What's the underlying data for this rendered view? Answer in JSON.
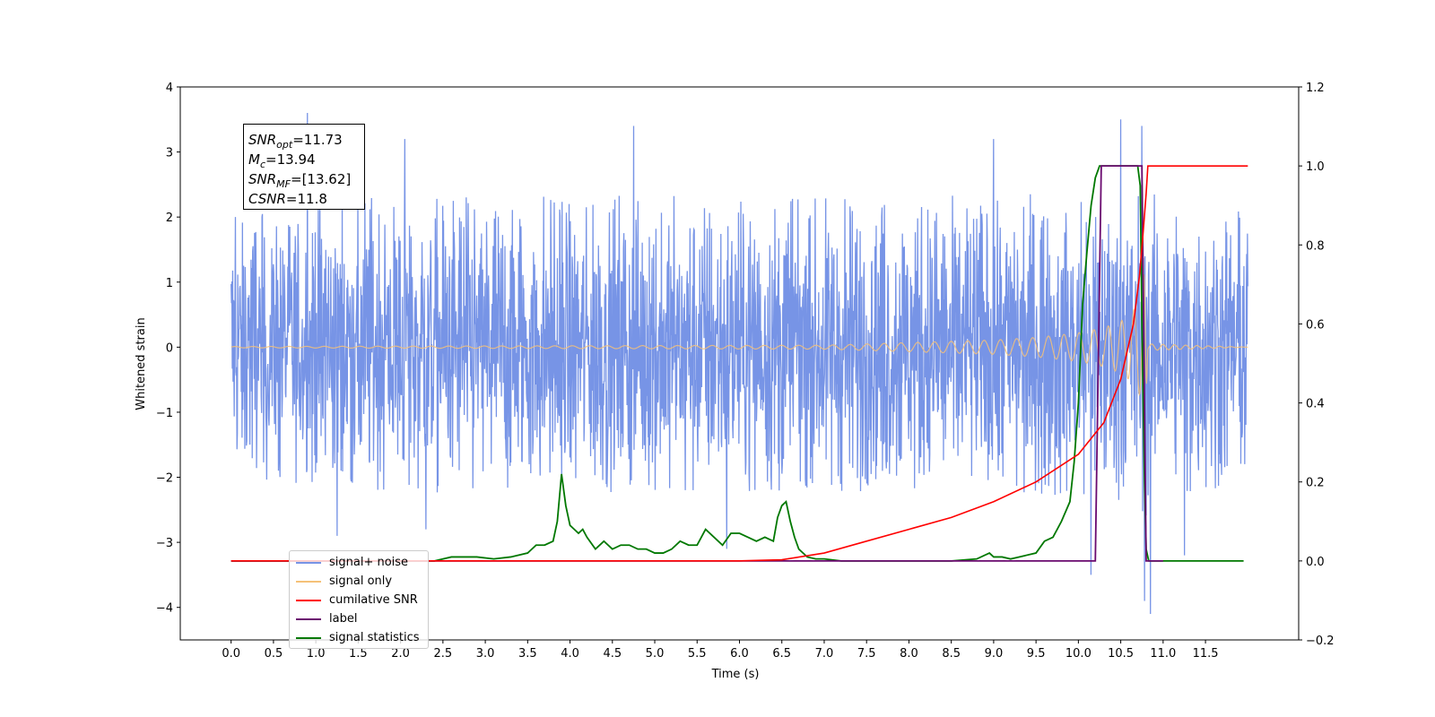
{
  "annotations": {
    "snr_opt_label": "SNR",
    "snr_opt_sub": "opt",
    "snr_opt_value": "=11.73",
    "mc_label": "M",
    "mc_sub": "c",
    "mc_value": "=13.94",
    "snr_mf_label": "SNR",
    "snr_mf_sub": "MF",
    "snr_mf_value": "=[13.62]",
    "csnr_label": "CSNR",
    "csnr_value": "=11.8"
  },
  "legend": [
    {
      "label": "signal+ noise",
      "color": "#7794e6"
    },
    {
      "label": "signal only",
      "color": "#f5c178"
    },
    {
      "label": "cumilative SNR",
      "color": "#ff0000"
    },
    {
      "label": "label",
      "color": "#6a0a6f"
    },
    {
      "label": "signal statistics",
      "color": "#007800"
    }
  ],
  "chart_data": {
    "type": "line",
    "xlabel": "Time (s)",
    "ylabel": "Whitened strain",
    "xlim": [
      -0.6,
      12.6
    ],
    "ylim": [
      -4.5,
      4.0
    ],
    "y2lim": [
      -0.2,
      1.2
    ],
    "x_ticks": [
      0.0,
      0.5,
      1.0,
      1.5,
      2.0,
      2.5,
      3.0,
      3.5,
      4.0,
      4.5,
      5.0,
      5.5,
      6.0,
      6.5,
      7.0,
      7.5,
      8.0,
      8.5,
      9.0,
      9.5,
      10.0,
      10.5,
      11.0,
      11.5
    ],
    "x_tick_labels": [
      "0.0",
      "0.5",
      "1.0",
      "1.5",
      "2.0",
      "2.5",
      "3.0",
      "3.5",
      "4.0",
      "4.5",
      "5.0",
      "5.5",
      "6.0",
      "6.5",
      "7.0",
      "7.5",
      "8.0",
      "8.5",
      "9.0",
      "9.5",
      "10.0",
      "10.5",
      "11.0",
      "11.5"
    ],
    "y_ticks": [
      4,
      3,
      2,
      1,
      0,
      -1,
      -2,
      -3,
      -4
    ],
    "y_tick_labels": [
      "4",
      "3",
      "2",
      "1",
      "0",
      "−1",
      "−2",
      "−3",
      "−4"
    ],
    "y2_ticks": [
      1.2,
      1.0,
      0.8,
      0.6,
      0.4,
      0.2,
      0.0,
      -0.2
    ],
    "y2_tick_labels": [
      "1.2",
      "1.0",
      "0.8",
      "0.6",
      "0.4",
      "0.2",
      "0.0",
      "−0.2"
    ],
    "series": [
      {
        "name": "signal+ noise",
        "axis": "left",
        "color": "#7794e6",
        "description": "dense noise band roughly between -2.0 and 2.3 with peaks up to about 3.6 and dips to about -4.1",
        "envelope_x": [
          0.0,
          1.0,
          2.0,
          3.0,
          4.0,
          5.0,
          6.0,
          7.0,
          8.0,
          9.0,
          10.0,
          10.5,
          10.8,
          11.0,
          12.0
        ],
        "envelope_upper": [
          2.0,
          2.3,
          2.4,
          2.3,
          2.4,
          2.3,
          2.4,
          2.3,
          2.3,
          2.4,
          2.3,
          2.4,
          2.5,
          2.3,
          2.2
        ],
        "envelope_lower": [
          -2.0,
          -2.2,
          -2.2,
          -2.3,
          -2.2,
          -2.3,
          -2.2,
          -2.3,
          -2.3,
          -2.2,
          -2.4,
          -2.4,
          -2.6,
          -2.3,
          -2.1
        ],
        "peaks": [
          [
            0.9,
            3.6
          ],
          [
            0.05,
            2.0
          ],
          [
            2.05,
            3.2
          ],
          [
            4.75,
            3.4
          ],
          [
            10.5,
            3.5
          ],
          [
            10.75,
            3.4
          ],
          [
            9.0,
            3.2
          ],
          [
            3.9,
            -2.0
          ],
          [
            5.85,
            -3.1
          ],
          [
            10.15,
            -3.5
          ],
          [
            10.78,
            -3.9
          ],
          [
            10.85,
            -4.1
          ],
          [
            11.25,
            -3.2
          ],
          [
            2.3,
            -2.8
          ],
          [
            1.25,
            -2.9
          ]
        ]
      },
      {
        "name": "signal only",
        "axis": "left",
        "color": "#f5c178",
        "description": "chirp amplitude growing with time, merging at 10.8 s then flat",
        "x": [
          0.0,
          7.0,
          8.0,
          9.0,
          9.5,
          10.0,
          10.3,
          10.5,
          10.6,
          10.7,
          10.75,
          10.78,
          10.8,
          10.82,
          12.0
        ],
        "amplitude": [
          0.01,
          0.03,
          0.07,
          0.11,
          0.15,
          0.22,
          0.3,
          0.4,
          0.5,
          0.65,
          0.85,
          1.2,
          0.8,
          0.05,
          0.0
        ]
      },
      {
        "name": "cumilative SNR",
        "axis": "right",
        "color": "#ff0000",
        "x": [
          0.0,
          6.0,
          6.5,
          7.0,
          7.5,
          8.0,
          8.5,
          9.0,
          9.5,
          10.0,
          10.3,
          10.5,
          10.65,
          10.72,
          10.76,
          10.8,
          10.82,
          12.0
        ],
        "y": [
          0.0,
          0.0,
          0.003,
          0.02,
          0.05,
          0.08,
          0.11,
          0.15,
          0.2,
          0.27,
          0.35,
          0.46,
          0.6,
          0.72,
          0.82,
          0.93,
          1.0,
          1.0
        ]
      },
      {
        "name": "label",
        "axis": "right",
        "color": "#6a0a6f",
        "x": [
          0.0,
          10.2,
          10.27,
          10.75,
          10.78,
          10.8,
          11.0
        ],
        "y": [
          0.0,
          0.0,
          1.0,
          1.0,
          0.4,
          0.0,
          0.0
        ]
      },
      {
        "name": "signal statistics",
        "axis": "right",
        "color": "#007800",
        "x": [
          0.0,
          2.4,
          2.6,
          2.9,
          3.1,
          3.3,
          3.5,
          3.6,
          3.7,
          3.8,
          3.85,
          3.9,
          3.95,
          4.0,
          4.1,
          4.15,
          4.2,
          4.3,
          4.4,
          4.5,
          4.6,
          4.7,
          4.8,
          4.9,
          5.0,
          5.1,
          5.2,
          5.3,
          5.4,
          5.5,
          5.6,
          5.7,
          5.8,
          5.9,
          6.0,
          6.1,
          6.2,
          6.3,
          6.4,
          6.45,
          6.5,
          6.55,
          6.6,
          6.65,
          6.7,
          6.8,
          6.9,
          7.0,
          7.2,
          7.5,
          8.5,
          8.8,
          8.95,
          9.0,
          9.1,
          9.2,
          9.3,
          9.5,
          9.6,
          9.7,
          9.8,
          9.9,
          9.95,
          10.0,
          10.05,
          10.1,
          10.15,
          10.2,
          10.25,
          10.3,
          10.35,
          10.4,
          10.6,
          10.7,
          10.73,
          10.75,
          10.78,
          10.8,
          10.83,
          10.9,
          11.5,
          11.95
        ],
        "y": [
          0.0,
          0.0,
          0.01,
          0.01,
          0.005,
          0.01,
          0.02,
          0.04,
          0.04,
          0.05,
          0.1,
          0.22,
          0.14,
          0.09,
          0.07,
          0.08,
          0.06,
          0.03,
          0.05,
          0.03,
          0.04,
          0.04,
          0.03,
          0.03,
          0.02,
          0.02,
          0.03,
          0.05,
          0.04,
          0.04,
          0.08,
          0.06,
          0.04,
          0.07,
          0.07,
          0.06,
          0.05,
          0.06,
          0.05,
          0.11,
          0.14,
          0.15,
          0.1,
          0.06,
          0.03,
          0.01,
          0.005,
          0.005,
          0.0,
          0.0,
          0.0,
          0.005,
          0.02,
          0.01,
          0.01,
          0.005,
          0.01,
          0.02,
          0.05,
          0.06,
          0.1,
          0.15,
          0.25,
          0.4,
          0.65,
          0.78,
          0.9,
          0.97,
          1.0,
          1.0,
          1.0,
          1.0,
          1.0,
          1.0,
          0.95,
          0.6,
          0.2,
          0.03,
          0.0,
          0.0,
          0.0,
          0.0
        ]
      }
    ]
  }
}
